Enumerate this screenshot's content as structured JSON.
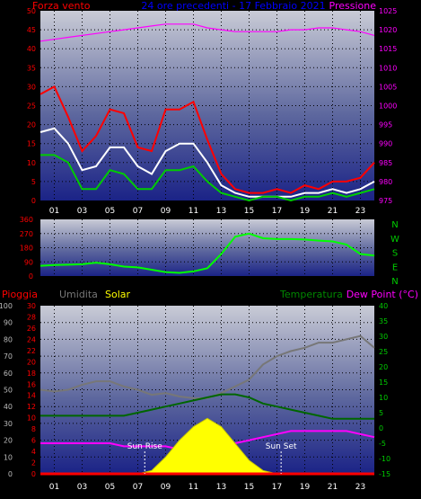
{
  "chart_data": [
    {
      "type": "line",
      "title": "24 ore precedenti - 17 Febbraio 2021",
      "left_label": "Forza vento",
      "right_label": "Pressione",
      "left_axis": {
        "ylim": [
          0,
          50
        ],
        "ticks": [
          "0",
          "5",
          "10",
          "15",
          "20",
          "25",
          "30",
          "35",
          "40",
          "45",
          "50"
        ]
      },
      "right_axis": {
        "ylim": [
          975,
          1025
        ],
        "ticks": [
          "975",
          "980",
          "985",
          "990",
          "995",
          "1000",
          "1005",
          "1010",
          "1015",
          "1020",
          "1025"
        ]
      },
      "x_hours": [
        0,
        1,
        2,
        3,
        4,
        5,
        6,
        7,
        8,
        9,
        10,
        11,
        12,
        13,
        14,
        15,
        16,
        17,
        18,
        19,
        20,
        21,
        22,
        23,
        24
      ],
      "x_tick_labels": [
        "01",
        "03",
        "05",
        "07",
        "09",
        "11",
        "13",
        "15",
        "17",
        "19",
        "21",
        "23"
      ],
      "series": [
        {
          "color": "#ff0000",
          "values": [
            28,
            30,
            22,
            13,
            17,
            24,
            23,
            14,
            13,
            24,
            24,
            26,
            16,
            7,
            3,
            2,
            2,
            3,
            2,
            4,
            3,
            5,
            5,
            6,
            10
          ]
        },
        {
          "color": "#ffffff",
          "values": [
            18,
            19,
            15,
            8,
            9,
            14,
            14,
            9,
            7,
            13,
            15,
            15,
            10,
            4,
            2,
            1,
            1,
            1,
            1,
            2,
            2,
            3,
            2,
            3,
            5
          ]
        },
        {
          "color": "#00cc00",
          "values": [
            12,
            12,
            10,
            3,
            3,
            8,
            7,
            3,
            3,
            8,
            8,
            9,
            5,
            2,
            1,
            0,
            1,
            1,
            0,
            1,
            1,
            2,
            1,
            2,
            3
          ]
        },
        {
          "color": "#ff00ff",
          "axis": "right",
          "values": [
            1017,
            1017.5,
            1018,
            1018.5,
            1019,
            1019.5,
            1020,
            1020.5,
            1021,
            1021.5,
            1021.5,
            1021.5,
            1020.5,
            1020,
            1019.5,
            1019.5,
            1019.5,
            1019.5,
            1020,
            1020,
            1020.5,
            1020.5,
            1020,
            1019.5,
            1018.5
          ]
        }
      ]
    },
    {
      "type": "line",
      "right_label": "N W S E N",
      "left_axis": {
        "ylim": [
          0,
          360
        ],
        "ticks": [
          "0",
          "90",
          "180",
          "270",
          "360"
        ]
      },
      "x_hours": [
        0,
        1,
        2,
        3,
        4,
        5,
        6,
        7,
        8,
        9,
        10,
        11,
        12,
        13,
        14,
        15,
        16,
        17,
        18,
        19,
        20,
        21,
        22,
        23,
        24
      ],
      "series": [
        {
          "color": "#00ff00",
          "values": [
            65,
            70,
            72,
            75,
            85,
            75,
            60,
            55,
            40,
            25,
            20,
            30,
            50,
            140,
            250,
            270,
            240,
            235,
            235,
            232,
            225,
            220,
            200,
            140,
            130
          ]
        }
      ]
    },
    {
      "type": "line",
      "legend": [
        "Pioggia",
        "Umidita",
        "Solar",
        "Temperatura",
        "Dew Point (°C)"
      ],
      "left_axis_pct": {
        "ylim": [
          0,
          100
        ],
        "ticks": [
          "0",
          "10",
          "20",
          "30",
          "40",
          "50",
          "60",
          "70",
          "80",
          "90",
          "100"
        ]
      },
      "left_axis_rain": {
        "ylim": [
          0,
          30
        ],
        "ticks": [
          "0",
          "2",
          "4",
          "6",
          "8",
          "10",
          "12",
          "14",
          "16",
          "18",
          "20",
          "22",
          "24",
          "26",
          "28",
          "30"
        ]
      },
      "right_axis": {
        "ylim": [
          -15,
          40
        ],
        "ticks": [
          "-15",
          "-10",
          "-5",
          "0",
          "5",
          "10",
          "15",
          "20",
          "25",
          "30",
          "35",
          "40"
        ]
      },
      "x_hours": [
        0,
        1,
        2,
        3,
        4,
        5,
        6,
        7,
        8,
        9,
        10,
        11,
        12,
        13,
        14,
        15,
        16,
        17,
        18,
        19,
        20,
        21,
        22,
        23,
        24
      ],
      "x_tick_labels": [
        "01",
        "03",
        "05",
        "07",
        "09",
        "11",
        "13",
        "15",
        "17",
        "19",
        "21",
        "23"
      ],
      "annotations": [
        "Sun Rise",
        "Sun Set"
      ],
      "sun_rise_hour": 7.5,
      "sun_set_hour": 17.3,
      "series": [
        {
          "name": "Umidita",
          "color": "#777777",
          "axis": "pct",
          "values": [
            50,
            49,
            50,
            53,
            55,
            55,
            52,
            50,
            47,
            48,
            46,
            45,
            45,
            48,
            52,
            56,
            65,
            70,
            73,
            75,
            78,
            78,
            80,
            82,
            75
          ]
        },
        {
          "name": "Temperatura",
          "color": "#006600",
          "axis": "right",
          "values": [
            4,
            4,
            4,
            4,
            4,
            4,
            4,
            5,
            6,
            7,
            8,
            9,
            10,
            11,
            11,
            10,
            8,
            7,
            6,
            5,
            4,
            3,
            3,
            3,
            3
          ]
        },
        {
          "name": "Dew Point (°C)",
          "color": "#ff00ff",
          "axis": "right",
          "values": [
            -5,
            -5,
            -5,
            -5,
            -5,
            -5,
            -6,
            -6,
            -6,
            -6,
            -7,
            -7,
            -7,
            -6,
            -5,
            -4,
            -3,
            -2,
            -1,
            -1,
            -1,
            -1,
            -1,
            -2,
            -3
          ]
        },
        {
          "name": "Solar",
          "color": "#ffff00",
          "axis": "pct",
          "values": [
            0,
            0,
            0,
            0,
            0,
            0,
            0,
            0,
            2,
            10,
            20,
            28,
            33,
            28,
            18,
            8,
            2,
            0,
            0,
            0,
            0,
            0,
            0,
            0,
            0
          ]
        },
        {
          "name": "Pioggia",
          "color": "#ff0000",
          "axis": "rain",
          "values": [
            0,
            0,
            0,
            0,
            0,
            0,
            0,
            0,
            0,
            0,
            0,
            0,
            0,
            0,
            0,
            0,
            0,
            0,
            0,
            0,
            0,
            0,
            0,
            0,
            0
          ]
        }
      ]
    }
  ]
}
